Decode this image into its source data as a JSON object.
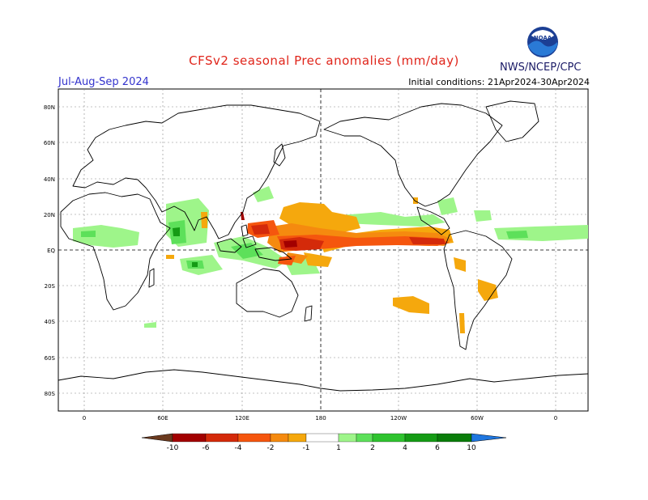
{
  "title": "CFSv2 seasonal Prec anomalies (mm/day)",
  "season": "Jul-Aug-Sep 2024",
  "initial_conditions": "Initial conditions: 21Apr2024-30Apr2024",
  "agency": "NWS/NCEP/CPC",
  "logo_text": "NOAA",
  "lat_labels": [
    "80N",
    "60N",
    "40N",
    "20N",
    "EQ",
    "20S",
    "40S",
    "60S",
    "80S"
  ],
  "lon_labels": [
    "0",
    "60E",
    "120E",
    "180",
    "120W",
    "60W",
    "0"
  ],
  "colorbar": {
    "ticks": [
      "-10",
      "-6",
      "-4",
      "-2",
      "-1",
      "1",
      "2",
      "4",
      "6",
      "10"
    ],
    "colors": [
      "#6b3a1e",
      "#a20000",
      "#d42a0a",
      "#f5560e",
      "#f58a0f",
      "#f5a80d",
      "#ffffff",
      "#9ef58a",
      "#5de05a",
      "#2fc32f",
      "#159b15",
      "#0a7d0a",
      "#1f77e0"
    ]
  },
  "chart_data": {
    "type": "heatmap",
    "title": "CFSv2 seasonal Prec anomalies (mm/day)",
    "variable": "Precipitation anomaly",
    "units": "mm/day",
    "season": "Jul-Aug-Sep 2024",
    "initial_conditions": "21Apr2024-30Apr2024",
    "lat_range": [
      -90,
      90
    ],
    "lon_range": [
      0,
      360
    ],
    "levels": [
      -10,
      -6,
      -4,
      -2,
      -1,
      1,
      2,
      4,
      6,
      10
    ],
    "grid": true
  }
}
